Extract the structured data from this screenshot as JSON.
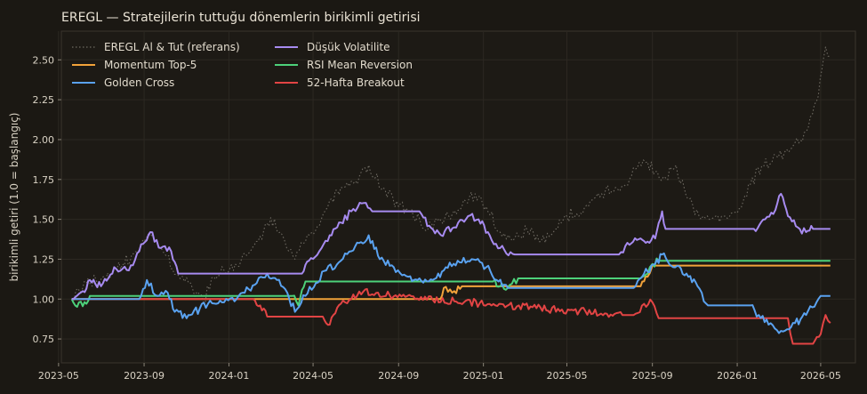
{
  "chart_data": {
    "type": "line",
    "title": "EREGL — Stratejilerin tuttuğu dönemlerin birikimli getirisi",
    "xlabel": "",
    "ylabel": "birikimli getiri (1.0 = başlangıç)",
    "x_range": [
      "2023-05-05",
      "2026-06-20"
    ],
    "ylim": [
      0.6,
      2.68
    ],
    "yticks": [
      "0.75",
      "1.00",
      "1.25",
      "1.50",
      "1.75",
      "2.00",
      "2.25",
      "2.50"
    ],
    "xticks": [
      "2023-05",
      "2023-09",
      "2024-01",
      "2024-05",
      "2024-09",
      "2025-01",
      "2025-05",
      "2025-09",
      "2026-01",
      "2026-05"
    ],
    "grid": true,
    "legend_position": "top-left",
    "series": [
      {
        "name": "EREGL Al & Tut (referans)",
        "color": "#6e6a62",
        "dash": true,
        "points": [
          [
            "2023-05-20",
            1.0
          ],
          [
            "2023-06-10",
            1.1
          ],
          [
            "2023-07-05",
            1.14
          ],
          [
            "2023-08-01",
            1.22
          ],
          [
            "2023-08-25",
            1.31
          ],
          [
            "2023-09-10",
            1.41
          ],
          [
            "2023-10-01",
            1.28
          ],
          [
            "2023-10-20",
            1.15
          ],
          [
            "2023-11-10",
            1.06
          ],
          [
            "2023-11-25",
            0.98
          ],
          [
            "2023-12-10",
            1.14
          ],
          [
            "2023-12-25",
            1.18
          ],
          [
            "2024-01-10",
            1.22
          ],
          [
            "2024-02-01",
            1.3
          ],
          [
            "2024-02-20",
            1.43
          ],
          [
            "2024-03-01",
            1.51
          ],
          [
            "2024-03-15",
            1.42
          ],
          [
            "2024-04-05",
            1.25
          ],
          [
            "2024-04-20",
            1.36
          ],
          [
            "2024-05-10",
            1.46
          ],
          [
            "2024-05-25",
            1.62
          ],
          [
            "2024-06-10",
            1.7
          ],
          [
            "2024-07-01",
            1.74
          ],
          [
            "2024-07-20",
            1.84
          ],
          [
            "2024-08-10",
            1.7
          ],
          [
            "2024-09-01",
            1.58
          ],
          [
            "2024-09-20",
            1.56
          ],
          [
            "2024-10-10",
            1.43
          ],
          [
            "2024-11-01",
            1.49
          ],
          [
            "2024-12-01",
            1.58
          ],
          [
            "2024-12-20",
            1.66
          ],
          [
            "2025-01-05",
            1.58
          ],
          [
            "2025-01-25",
            1.42
          ],
          [
            "2025-02-15",
            1.38
          ],
          [
            "2025-03-05",
            1.43
          ],
          [
            "2025-03-25",
            1.36
          ],
          [
            "2025-04-15",
            1.44
          ],
          [
            "2025-05-01",
            1.52
          ],
          [
            "2025-06-01",
            1.58
          ],
          [
            "2025-06-20",
            1.66
          ],
          [
            "2025-07-10",
            1.7
          ],
          [
            "2025-07-25",
            1.72
          ],
          [
            "2025-08-10",
            1.82
          ],
          [
            "2025-08-25",
            1.86
          ],
          [
            "2025-09-05",
            1.8
          ],
          [
            "2025-09-20",
            1.76
          ],
          [
            "2025-10-05",
            1.84
          ],
          [
            "2025-10-20",
            1.64
          ],
          [
            "2025-11-10",
            1.5
          ],
          [
            "2025-12-01",
            1.52
          ],
          [
            "2026-01-01",
            1.54
          ],
          [
            "2026-01-20",
            1.72
          ],
          [
            "2026-02-05",
            1.83
          ],
          [
            "2026-02-20",
            1.86
          ],
          [
            "2026-03-10",
            1.92
          ],
          [
            "2026-03-25",
            1.98
          ],
          [
            "2026-04-10",
            2.05
          ],
          [
            "2026-04-25",
            2.24
          ],
          [
            "2026-05-08",
            2.58
          ],
          [
            "2026-05-15",
            2.52
          ]
        ]
      },
      {
        "name": "Momentum Top-5",
        "color": "#f2a33a",
        "dash": false,
        "points": [
          [
            "2023-05-20",
            1.0
          ],
          [
            "2024-04-01",
            1.0
          ],
          [
            "2024-10-31",
            1.0
          ],
          [
            "2024-11-05",
            1.07
          ],
          [
            "2024-11-20",
            1.05
          ],
          [
            "2024-12-01",
            1.08
          ],
          [
            "2025-08-15",
            1.08
          ],
          [
            "2025-08-25",
            1.14
          ],
          [
            "2025-09-01",
            1.21
          ],
          [
            "2026-05-15",
            1.21
          ]
        ]
      },
      {
        "name": "Golden Cross",
        "color": "#5aa2f0",
        "dash": false,
        "points": [
          [
            "2023-05-20",
            1.0
          ],
          [
            "2023-08-25",
            1.0
          ],
          [
            "2023-09-05",
            1.12
          ],
          [
            "2023-09-20",
            1.02
          ],
          [
            "2023-10-05",
            1.04
          ],
          [
            "2023-10-15",
            0.92
          ],
          [
            "2023-11-01",
            0.88
          ],
          [
            "2023-11-20",
            0.94
          ],
          [
            "2023-12-05",
            0.99
          ],
          [
            "2023-12-25",
            0.98
          ],
          [
            "2024-01-15",
            1.02
          ],
          [
            "2024-02-10",
            1.1
          ],
          [
            "2024-02-25",
            1.16
          ],
          [
            "2024-03-10",
            1.12
          ],
          [
            "2024-03-25",
            1.04
          ],
          [
            "2024-04-05",
            0.92
          ],
          [
            "2024-04-20",
            1.02
          ],
          [
            "2024-05-05",
            1.1
          ],
          [
            "2024-05-20",
            1.18
          ],
          [
            "2024-06-10",
            1.24
          ],
          [
            "2024-06-25",
            1.3
          ],
          [
            "2024-07-20",
            1.4
          ],
          [
            "2024-08-05",
            1.25
          ],
          [
            "2024-08-25",
            1.2
          ],
          [
            "2024-09-15",
            1.14
          ],
          [
            "2024-10-01",
            1.13
          ],
          [
            "2024-10-20",
            1.12
          ],
          [
            "2024-11-05",
            1.18
          ],
          [
            "2024-11-25",
            1.24
          ],
          [
            "2024-12-15",
            1.25
          ],
          [
            "2025-01-05",
            1.2
          ],
          [
            "2025-01-20",
            1.12
          ],
          [
            "2025-02-05",
            1.07
          ],
          [
            "2025-08-05",
            1.07
          ],
          [
            "2025-08-20",
            1.16
          ],
          [
            "2025-09-05",
            1.22
          ],
          [
            "2025-09-15",
            1.28
          ],
          [
            "2025-10-01",
            1.2
          ],
          [
            "2025-10-20",
            1.16
          ],
          [
            "2025-11-05",
            1.08
          ],
          [
            "2025-11-20",
            0.96
          ],
          [
            "2026-01-20",
            0.96
          ],
          [
            "2026-02-01",
            0.9
          ],
          [
            "2026-02-15",
            0.84
          ],
          [
            "2026-03-05",
            0.8
          ],
          [
            "2026-03-25",
            0.85
          ],
          [
            "2026-04-10",
            0.9
          ],
          [
            "2026-04-25",
            0.98
          ],
          [
            "2026-05-01",
            1.02
          ],
          [
            "2026-05-15",
            1.02
          ]
        ]
      },
      {
        "name": "Düşük Volatilite",
        "color": "#a78bf0",
        "dash": false,
        "points": [
          [
            "2023-05-20",
            1.0
          ],
          [
            "2023-06-05",
            1.05
          ],
          [
            "2023-06-15",
            1.12
          ],
          [
            "2023-07-01",
            1.08
          ],
          [
            "2023-07-20",
            1.2
          ],
          [
            "2023-08-10",
            1.18
          ],
          [
            "2023-08-25",
            1.3
          ],
          [
            "2023-09-10",
            1.42
          ],
          [
            "2023-09-25",
            1.32
          ],
          [
            "2023-10-10",
            1.3
          ],
          [
            "2023-10-20",
            1.16
          ],
          [
            "2024-04-01",
            1.16
          ],
          [
            "2024-04-15",
            1.16
          ],
          [
            "2024-04-25",
            1.24
          ],
          [
            "2024-05-10",
            1.3
          ],
          [
            "2024-05-25",
            1.4
          ],
          [
            "2024-06-10",
            1.48
          ],
          [
            "2024-06-25",
            1.55
          ],
          [
            "2024-07-10",
            1.6
          ],
          [
            "2024-07-25",
            1.55
          ],
          [
            "2024-10-01",
            1.55
          ],
          [
            "2024-10-15",
            1.46
          ],
          [
            "2024-11-01",
            1.4
          ],
          [
            "2024-11-20",
            1.45
          ],
          [
            "2024-12-10",
            1.52
          ],
          [
            "2024-12-25",
            1.5
          ],
          [
            "2025-01-10",
            1.4
          ],
          [
            "2025-01-25",
            1.32
          ],
          [
            "2025-02-15",
            1.28
          ],
          [
            "2025-07-15",
            1.28
          ],
          [
            "2025-07-30",
            1.34
          ],
          [
            "2025-08-15",
            1.38
          ],
          [
            "2025-08-25",
            1.36
          ],
          [
            "2025-09-05",
            1.38
          ],
          [
            "2025-09-15",
            1.55
          ],
          [
            "2025-09-20",
            1.44
          ],
          [
            "2026-01-25",
            1.44
          ],
          [
            "2026-02-10",
            1.5
          ],
          [
            "2026-02-25",
            1.56
          ],
          [
            "2026-03-05",
            1.66
          ],
          [
            "2026-03-15",
            1.52
          ],
          [
            "2026-04-01",
            1.44
          ],
          [
            "2026-04-10",
            1.42
          ],
          [
            "2026-04-20",
            1.44
          ],
          [
            "2026-05-15",
            1.44
          ]
        ]
      },
      {
        "name": "RSI Mean Reversion",
        "color": "#4dd17a",
        "dash": false,
        "points": [
          [
            "2023-05-20",
            1.0
          ],
          [
            "2023-05-25",
            0.96
          ],
          [
            "2023-06-10",
            0.97
          ],
          [
            "2023-06-15",
            1.02
          ],
          [
            "2024-04-01",
            1.02
          ],
          [
            "2024-04-10",
            0.96
          ],
          [
            "2024-04-20",
            1.11
          ],
          [
            "2024-05-10",
            1.11
          ],
          [
            "2025-01-15",
            1.11
          ],
          [
            "2025-01-25",
            1.08
          ],
          [
            "2025-02-05",
            1.07
          ],
          [
            "2025-02-20",
            1.13
          ],
          [
            "2025-08-15",
            1.13
          ],
          [
            "2025-08-25",
            1.16
          ],
          [
            "2025-09-01",
            1.22
          ],
          [
            "2025-09-10",
            1.24
          ],
          [
            "2026-05-15",
            1.24
          ]
        ]
      },
      {
        "name": "52-Hafta Breakout",
        "color": "#e24444",
        "dash": false,
        "points": [
          [
            "2023-05-20",
            1.0
          ],
          [
            "2024-01-15",
            1.0
          ],
          [
            "2024-02-05",
            1.0
          ],
          [
            "2024-02-15",
            0.96
          ],
          [
            "2024-02-25",
            0.89
          ],
          [
            "2024-05-15",
            0.89
          ],
          [
            "2024-05-25",
            0.84
          ],
          [
            "2024-06-10",
            0.97
          ],
          [
            "2024-06-25",
            1.0
          ],
          [
            "2024-07-15",
            1.06
          ],
          [
            "2024-07-25",
            1.03
          ],
          [
            "2025-07-20",
            0.9
          ],
          [
            "2025-08-05",
            0.9
          ],
          [
            "2025-08-20",
            0.97
          ],
          [
            "2025-09-01",
            0.98
          ],
          [
            "2025-09-10",
            0.88
          ],
          [
            "2026-03-15",
            0.88
          ],
          [
            "2026-03-22",
            0.72
          ],
          [
            "2026-04-20",
            0.72
          ],
          [
            "2026-05-01",
            0.78
          ],
          [
            "2026-05-08",
            0.9
          ],
          [
            "2026-05-15",
            0.85
          ]
        ]
      }
    ]
  }
}
